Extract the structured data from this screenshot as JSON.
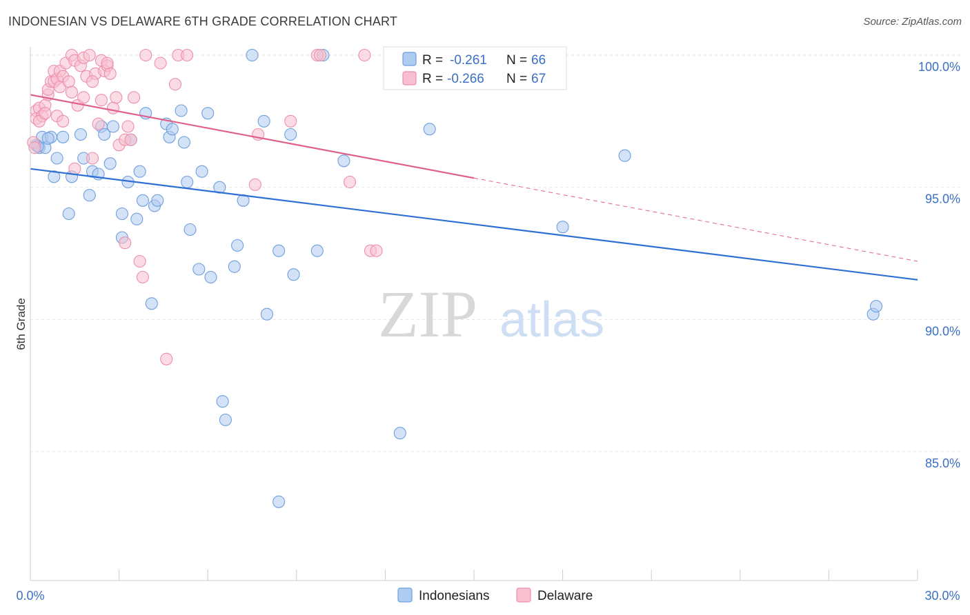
{
  "header": {
    "title": "INDONESIAN VS DELAWARE 6TH GRADE CORRELATION CHART",
    "source": "Source: ZipAtlas.com"
  },
  "watermark": {
    "zip": "ZIP",
    "atlas": "atlas"
  },
  "colors": {
    "indonesians_fill": "#aecbf0",
    "indonesians_stroke": "#6f9fde",
    "indonesians_line": "#2d6fd4",
    "delaware_fill": "#f8bfd0",
    "delaware_stroke": "#ec8fad",
    "delaware_line": "#e0608c",
    "tick_label": "#3a6fc4",
    "grid": "#e3e3e3"
  },
  "legend": {
    "rows": [
      {
        "r_label": "R =",
        "r_value": "-0.261",
        "n_label": "N =",
        "n_value": "66"
      },
      {
        "r_label": "R =",
        "r_value": "-0.266",
        "n_label": "N =",
        "n_value": "67"
      }
    ]
  },
  "chart_data": {
    "type": "scatter",
    "title": "INDONESIAN VS DELAWARE 6TH GRADE CORRELATION CHART",
    "xlabel": "",
    "ylabel": "6th Grade",
    "xlim": [
      0,
      30
    ],
    "ylim": [
      80.5,
      100.5
    ],
    "x_tick_labels": [
      "0.0%",
      "30.0%"
    ],
    "y_ticks": [
      85,
      90,
      95,
      100
    ],
    "y_tick_labels": [
      "85.0%",
      "90.0%",
      "95.0%",
      "100.0%"
    ],
    "grid": true,
    "legend_position": "top-center",
    "series": [
      {
        "name": "Indonesians",
        "r": -0.261,
        "n": 66,
        "trend": {
          "x0": 0,
          "y0": 95.7,
          "x1": 30,
          "y1": 91.5,
          "dashed_from": null
        },
        "points": [
          [
            0.2,
            96.6
          ],
          [
            0.3,
            96.5
          ],
          [
            0.4,
            96.9
          ],
          [
            0.5,
            96.5
          ],
          [
            0.7,
            96.9
          ],
          [
            0.8,
            95.4
          ],
          [
            0.9,
            96.1
          ],
          [
            1.1,
            96.9
          ],
          [
            1.3,
            94.0
          ],
          [
            1.4,
            95.4
          ],
          [
            1.7,
            97.0
          ],
          [
            1.8,
            96.1
          ],
          [
            2.0,
            94.7
          ],
          [
            2.1,
            95.6
          ],
          [
            2.3,
            95.5
          ],
          [
            2.4,
            97.3
          ],
          [
            2.5,
            97.0
          ],
          [
            2.7,
            95.9
          ],
          [
            2.8,
            97.3
          ],
          [
            3.1,
            94.0
          ],
          [
            3.1,
            93.1
          ],
          [
            3.3,
            95.2
          ],
          [
            3.4,
            96.8
          ],
          [
            3.6,
            93.8
          ],
          [
            3.7,
            95.6
          ],
          [
            3.8,
            94.5
          ],
          [
            3.9,
            97.8
          ],
          [
            4.1,
            90.6
          ],
          [
            4.2,
            94.3
          ],
          [
            4.3,
            94.5
          ],
          [
            4.6,
            97.4
          ],
          [
            4.7,
            96.9
          ],
          [
            4.8,
            97.2
          ],
          [
            5.1,
            97.9
          ],
          [
            5.2,
            96.7
          ],
          [
            5.3,
            95.2
          ],
          [
            5.4,
            93.4
          ],
          [
            5.7,
            91.9
          ],
          [
            5.8,
            95.6
          ],
          [
            6.0,
            97.8
          ],
          [
            6.1,
            91.6
          ],
          [
            6.4,
            95.0
          ],
          [
            6.5,
            86.9
          ],
          [
            6.6,
            86.2
          ],
          [
            6.9,
            92.0
          ],
          [
            7.0,
            92.8
          ],
          [
            7.2,
            94.5
          ],
          [
            7.5,
            100.0
          ],
          [
            7.9,
            97.5
          ],
          [
            8.0,
            90.2
          ],
          [
            8.4,
            92.6
          ],
          [
            8.8,
            97.0
          ],
          [
            8.9,
            91.7
          ],
          [
            9.7,
            92.6
          ],
          [
            9.9,
            100.0
          ],
          [
            10.6,
            96.0
          ],
          [
            12.5,
            85.7
          ],
          [
            13.5,
            97.2
          ],
          [
            15.4,
            100.0
          ],
          [
            18.0,
            93.5
          ],
          [
            20.1,
            96.2
          ],
          [
            28.5,
            90.2
          ],
          [
            28.6,
            90.5
          ],
          [
            8.4,
            83.1
          ],
          [
            0.25,
            96.55
          ],
          [
            0.6,
            96.85
          ]
        ]
      },
      {
        "name": "Delaware",
        "r": -0.266,
        "n": 67,
        "trend": {
          "x0": 0,
          "y0": 98.5,
          "x1": 30,
          "y1": 92.2,
          "dashed_from": 15
        },
        "points": [
          [
            0.1,
            96.7
          ],
          [
            0.2,
            97.9
          ],
          [
            0.2,
            97.6
          ],
          [
            0.3,
            98.0
          ],
          [
            0.4,
            97.7
          ],
          [
            0.5,
            98.1
          ],
          [
            0.6,
            98.5
          ],
          [
            0.6,
            98.7
          ],
          [
            0.7,
            99.0
          ],
          [
            0.8,
            99.0
          ],
          [
            0.8,
            99.4
          ],
          [
            0.9,
            99.1
          ],
          [
            1.0,
            99.4
          ],
          [
            1.0,
            98.8
          ],
          [
            1.1,
            99.2
          ],
          [
            1.2,
            99.7
          ],
          [
            1.3,
            99.0
          ],
          [
            1.4,
            98.6
          ],
          [
            1.4,
            100.0
          ],
          [
            1.5,
            99.8
          ],
          [
            1.6,
            98.1
          ],
          [
            1.7,
            99.6
          ],
          [
            1.8,
            99.9
          ],
          [
            1.9,
            99.2
          ],
          [
            2.0,
            100.0
          ],
          [
            2.1,
            96.1
          ],
          [
            2.2,
            99.3
          ],
          [
            2.3,
            97.4
          ],
          [
            2.4,
            98.3
          ],
          [
            2.4,
            99.8
          ],
          [
            2.5,
            99.4
          ],
          [
            2.6,
            99.6
          ],
          [
            2.7,
            99.3
          ],
          [
            2.8,
            98.0
          ],
          [
            2.9,
            98.4
          ],
          [
            3.0,
            96.6
          ],
          [
            3.2,
            96.8
          ],
          [
            3.4,
            96.8
          ],
          [
            3.5,
            98.4
          ],
          [
            3.7,
            92.2
          ],
          [
            3.8,
            91.6
          ],
          [
            3.9,
            100.0
          ],
          [
            4.4,
            99.7
          ],
          [
            4.6,
            88.5
          ],
          [
            4.9,
            98.9
          ],
          [
            5.0,
            100.0
          ],
          [
            5.3,
            100.0
          ],
          [
            7.6,
            95.1
          ],
          [
            7.7,
            97.0
          ],
          [
            8.8,
            97.5
          ],
          [
            9.7,
            100.0
          ],
          [
            9.8,
            100.0
          ],
          [
            10.8,
            95.2
          ],
          [
            11.3,
            100.0
          ],
          [
            11.5,
            92.6
          ],
          [
            11.7,
            92.6
          ],
          [
            3.2,
            92.9
          ],
          [
            1.5,
            95.7
          ],
          [
            2.1,
            99.0
          ],
          [
            0.9,
            97.7
          ],
          [
            0.3,
            97.5
          ],
          [
            0.5,
            97.8
          ],
          [
            1.8,
            98.4
          ],
          [
            2.6,
            99.7
          ],
          [
            3.3,
            97.3
          ],
          [
            0.15,
            96.5
          ],
          [
            1.1,
            97.5
          ]
        ]
      }
    ]
  },
  "bottom_legend": {
    "items": [
      {
        "label": "Indonesians"
      },
      {
        "label": "Delaware"
      }
    ]
  }
}
